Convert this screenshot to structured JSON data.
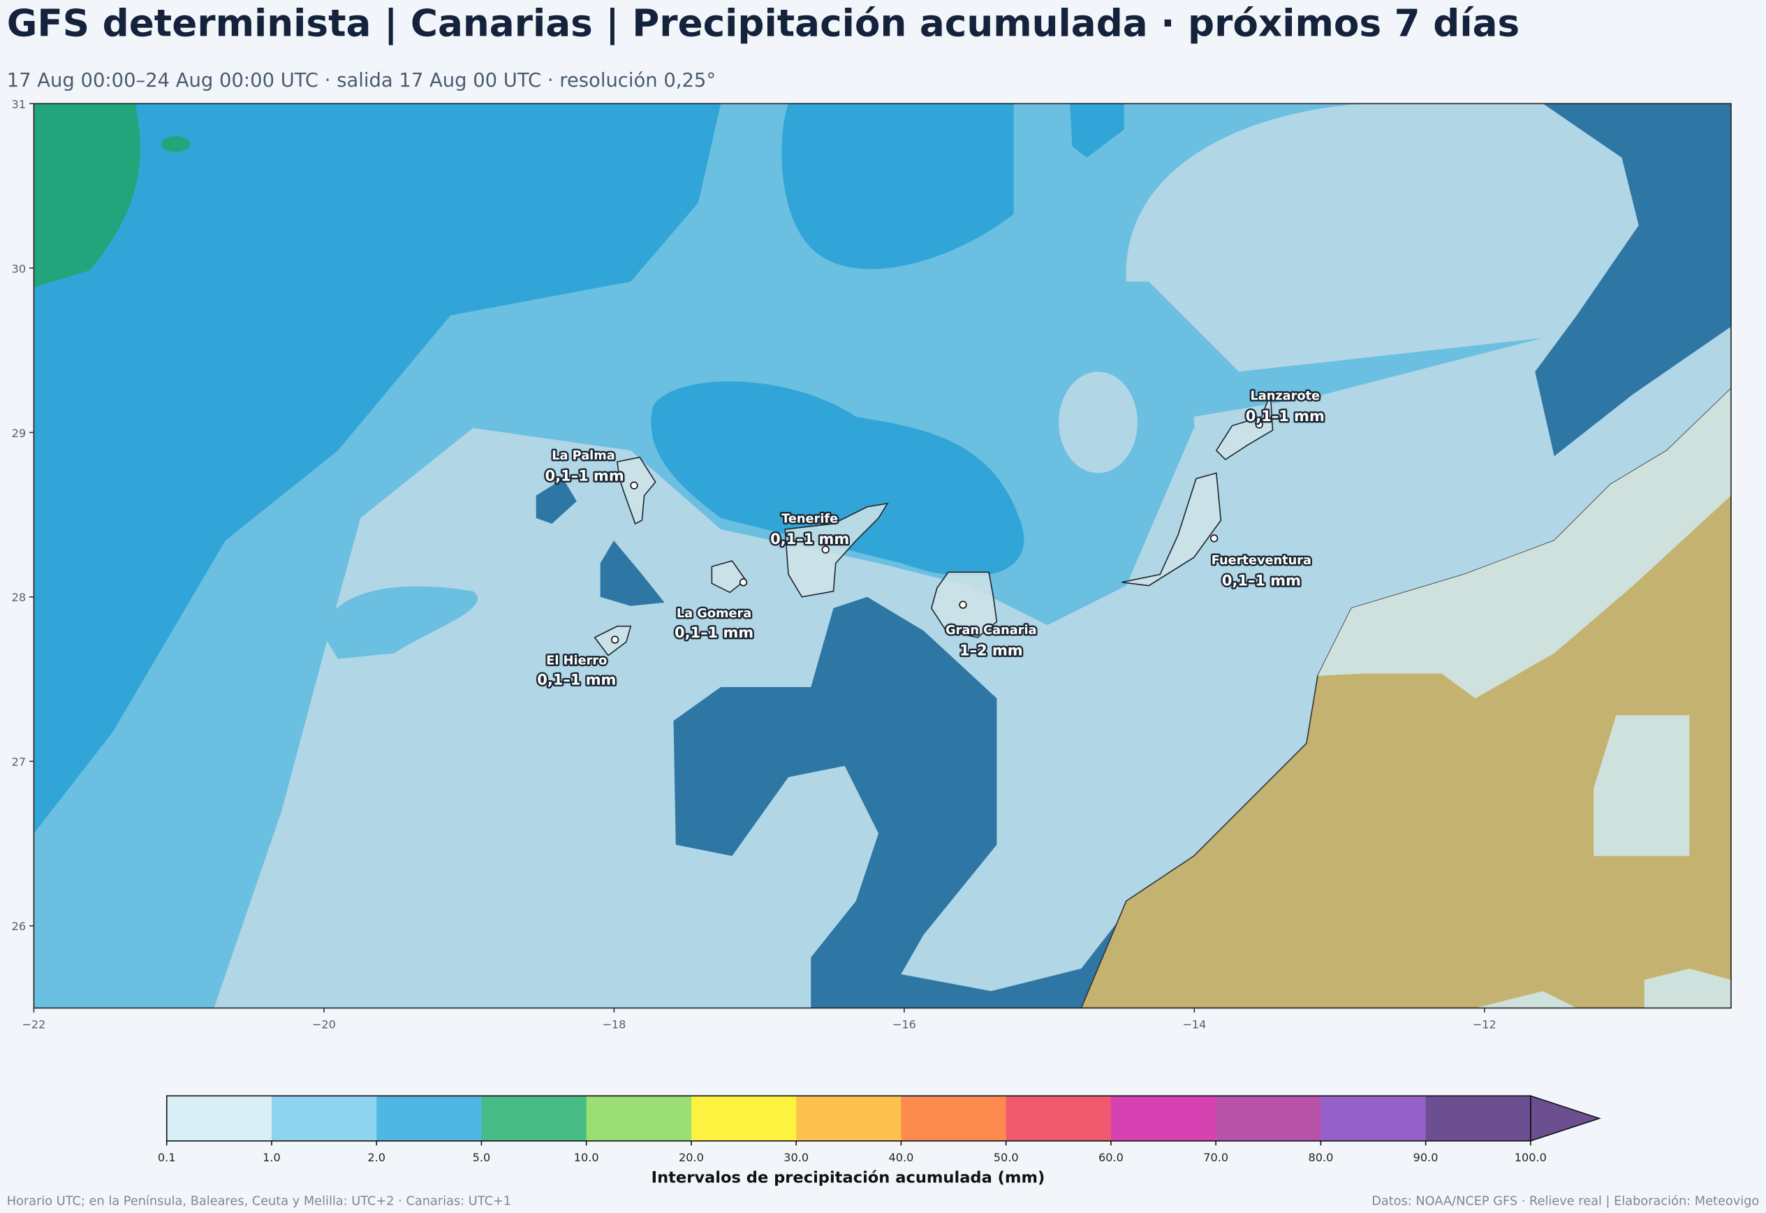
{
  "header": {
    "title": "GFS determinista | Canarias | Precipitación acumulada · próximos 7 días",
    "subtitle": "17 Aug 00:00–24 Aug 00:00 UTC · salida 17 Aug 00 UTC · resolución 0,25°"
  },
  "map": {
    "xlim": [
      -22,
      -10.3
    ],
    "ylim": [
      25.5,
      31
    ],
    "xticks": [
      {
        "value": -22,
        "label": "−22"
      },
      {
        "value": -20,
        "label": "−20"
      },
      {
        "value": -18,
        "label": "−18"
      },
      {
        "value": -16,
        "label": "−16"
      },
      {
        "value": -14,
        "label": "−14"
      },
      {
        "value": -12,
        "label": "−12"
      }
    ],
    "yticks": [
      26,
      27,
      28,
      29,
      30,
      31
    ],
    "places": [
      {
        "name": "La Palma",
        "amount": "0,1–1 mm"
      },
      {
        "name": "Tenerife",
        "amount": "0,1–1 mm"
      },
      {
        "name": "La Gomera",
        "amount": "0,1–1 mm"
      },
      {
        "name": "El Hierro",
        "amount": "0,1–1 mm"
      },
      {
        "name": "Gran Canaria",
        "amount": "1–2 mm"
      },
      {
        "name": "Lanzarote",
        "amount": "0,1–1 mm"
      },
      {
        "name": "Fuerteventura",
        "amount": "0,1–1 mm"
      }
    ]
  },
  "colorbar": {
    "label": "Intervalos de precipitación acumulada (mm)",
    "ticks": [
      0.1,
      {
        "value": 1,
        "label": "1.0"
      },
      {
        "value": 2,
        "label": "2.0"
      },
      {
        "value": 5,
        "label": "5.0"
      },
      {
        "value": 10,
        "label": "10.0"
      },
      {
        "value": 20,
        "label": "20.0"
      },
      {
        "value": 30,
        "label": "30.0"
      },
      {
        "value": 40,
        "label": "40.0"
      },
      {
        "value": 50,
        "label": "50.0"
      },
      {
        "value": 60,
        "label": "60.0"
      },
      {
        "value": 70,
        "label": "70.0"
      },
      {
        "value": 80,
        "label": "80.0"
      },
      {
        "value": 90,
        "label": "90.0"
      },
      {
        "value": 100,
        "label": "100.0"
      }
    ],
    "colors": [
      "#d8eff6",
      "#8fd4ef",
      "#50b7e2",
      "#47bb86",
      "#9bde73",
      "#fdf23f",
      "#fdc14d",
      "#fd8a4f",
      "#f05a6e",
      "#d642b1",
      "#b853a9",
      "#9561c9",
      "#6b4f90"
    ]
  },
  "footer": {
    "left": "Horario UTC; en la Península, Baleares, Ceuta y Melilla: UTC+2 · Canarias: UTC+1",
    "right": "Datos: NOAA/NCEP GFS · Relieve real | Elaboración: Meteovigo"
  }
}
